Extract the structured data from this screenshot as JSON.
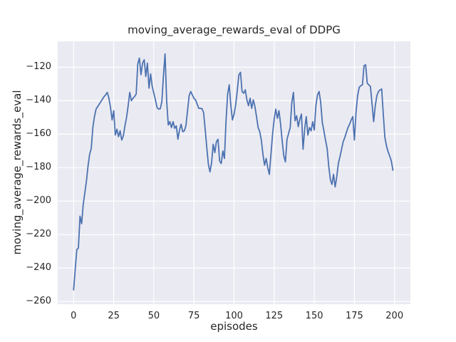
{
  "chart_data": {
    "type": "line",
    "title": "moving_average_rewards_eval of DDPG",
    "xlabel": "episodes",
    "ylabel": "moving_average_rewards_eval",
    "x_ticks": [
      0,
      25,
      50,
      75,
      100,
      125,
      150,
      175,
      200
    ],
    "y_ticks": [
      -260,
      -240,
      -220,
      -200,
      -180,
      -160,
      -140,
      -120
    ],
    "xlim": [
      -9.9,
      209.9
    ],
    "ylim": [
      -261.6,
      -104.5
    ],
    "grid": true,
    "legend_position": "none",
    "style": {
      "line_color": "#4C72B0",
      "plot_background": "#EAEAF2",
      "grid_color": "#FFFFFF",
      "text_color": "#262626",
      "figure_background": "#FFFFFF"
    },
    "series": [
      {
        "name": "moving_average_rewards_eval",
        "x_start": 0,
        "x_step": 1,
        "values": [
          -253,
          -241,
          -229,
          -228,
          -209,
          -213.5,
          -202,
          -195,
          -188,
          -179,
          -172,
          -168.5,
          -156,
          -149.5,
          -145,
          -143.5,
          -142,
          -140.5,
          -139,
          -137.5,
          -136.5,
          -135,
          -138.5,
          -144,
          -151.5,
          -146,
          -160.5,
          -157,
          -161.5,
          -158,
          -163.5,
          -161,
          -155,
          -150,
          -143,
          -135,
          -140,
          -138.5,
          -137.5,
          -136,
          -118,
          -114.5,
          -124.5,
          -117.5,
          -115.5,
          -125.5,
          -117.5,
          -132.5,
          -124,
          -131.5,
          -135.5,
          -139.5,
          -144,
          -145,
          -144.8,
          -140.5,
          -125,
          -112,
          -140,
          -154.5,
          -152.5,
          -156,
          -152.5,
          -156.5,
          -155,
          -163,
          -157.5,
          -154,
          -158.5,
          -158,
          -155,
          -146,
          -137,
          -134.5,
          -136.5,
          -138.5,
          -139.5,
          -142,
          -144.5,
          -144.6,
          -144.7,
          -147,
          -157,
          -168,
          -178,
          -182.5,
          -177,
          -166,
          -171,
          -164.5,
          -163,
          -176,
          -177.5,
          -170,
          -174.5,
          -152,
          -136,
          -130.5,
          -143,
          -151.5,
          -148,
          -142.5,
          -134,
          -124.5,
          -123,
          -134.5,
          -135.5,
          -133.5,
          -139.5,
          -143,
          -138.5,
          -144.5,
          -139.5,
          -143.5,
          -149.5,
          -156,
          -158.5,
          -163.5,
          -172,
          -178.5,
          -174.5,
          -180,
          -184,
          -172,
          -160,
          -151,
          -145,
          -150.5,
          -146,
          -154,
          -164,
          -173,
          -176.5,
          -163,
          -159.5,
          -156,
          -141,
          -135,
          -152,
          -149,
          -155.5,
          -151,
          -148,
          -169,
          -157,
          -149.5,
          -160.5,
          -156,
          -158,
          -152.5,
          -157.5,
          -143,
          -136.5,
          -134.5,
          -141,
          -153,
          -158,
          -163.5,
          -168.5,
          -179,
          -187,
          -190,
          -184,
          -191.5,
          -185.5,
          -177.5,
          -173.5,
          -169,
          -164.5,
          -162,
          -159,
          -156,
          -154,
          -151.5,
          -149.5,
          -163.5,
          -147,
          -137,
          -132,
          -131,
          -130.5,
          -119,
          -118.5,
          -129.5,
          -130.5,
          -131.5,
          -142,
          -152.5,
          -143,
          -137,
          -134.5,
          -133.5,
          -133,
          -148,
          -162,
          -167,
          -170.5,
          -173,
          -176,
          -181.5
        ]
      }
    ]
  }
}
